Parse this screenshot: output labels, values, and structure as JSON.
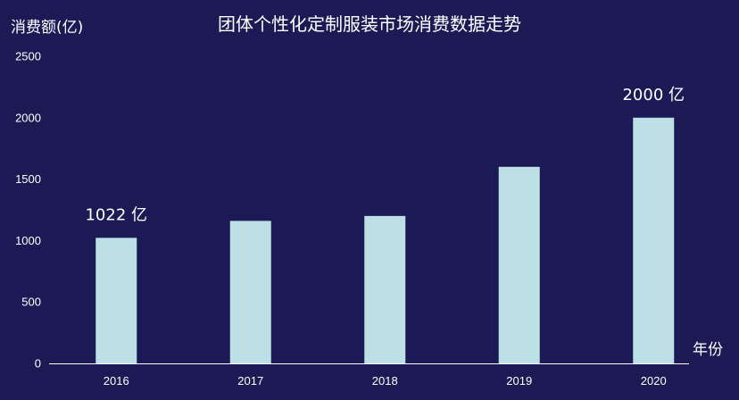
{
  "colors": {
    "background": "#1c1a55",
    "bar": "#bde0e6",
    "axis": "#ffffff",
    "text": "#ffffff"
  },
  "chart_data": {
    "type": "bar",
    "title": "团体个性化定制服装市场消费数据走势",
    "xlabel": "年份",
    "ylabel": "消费额(亿)",
    "categories": [
      "2016",
      "2017",
      "2018",
      "2019",
      "2020"
    ],
    "values": [
      1022,
      1160,
      1200,
      1600,
      2000
    ],
    "ylim": [
      0,
      2500
    ],
    "yticks": [
      0,
      500,
      1000,
      1500,
      2000,
      2500
    ],
    "grid": false,
    "legend": "none",
    "annotations": [
      {
        "category": "2016",
        "text": "1022 亿"
      },
      {
        "category": "2020",
        "text": "2000 亿"
      }
    ]
  }
}
